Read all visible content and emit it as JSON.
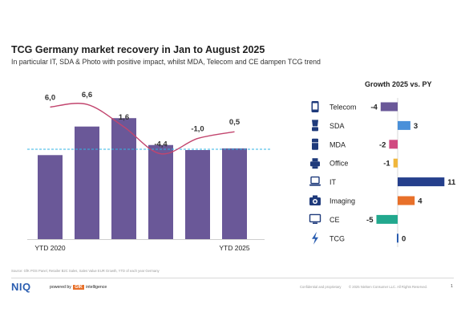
{
  "slide": {
    "title": "TCG Germany market recovery in Jan to August 2025",
    "subtitle": "In particular IT, SDA & Photo with positive impact, whilst MDA, Telecom and CE dampen TCG trend"
  },
  "chart_data": [
    {
      "type": "bar",
      "categories": [
        "YTD 2020",
        "",
        "",
        "",
        "",
        "YTD 2025"
      ],
      "bar_values": [
        100,
        117,
        122,
        106,
        103,
        104
      ],
      "line_values": [
        6.0,
        6.6,
        1.6,
        -4.4,
        -1.0,
        0.5
      ],
      "data_labels": [
        "6,0",
        "6,6",
        "1,6",
        "-4,4",
        "-1,0",
        "0,5"
      ],
      "reference_line": 103.5,
      "ylim": [
        50,
        135
      ],
      "colors": {
        "bar": "#6a5898",
        "line": "#c2456e",
        "reference": "#33b5e5"
      }
    },
    {
      "type": "bar",
      "orientation": "horizontal",
      "title": "Growth 2025 vs. PY",
      "categories": [
        "Telecom",
        "SDA",
        "MDA",
        "Office",
        "IT",
        "Imaging",
        "CE",
        "TCG"
      ],
      "values": [
        -4,
        3,
        -2,
        -1,
        11,
        4,
        -5,
        0
      ],
      "labels": [
        "-4",
        "3",
        "-2",
        "-1",
        "11",
        "4",
        "-5",
        "0"
      ],
      "icons": [
        "phone-icon",
        "mixer-icon",
        "fridge-icon",
        "printer-icon",
        "laptop-icon",
        "camera-icon",
        "tv-icon",
        "lightning-icon"
      ],
      "colors": [
        "#6a5898",
        "#4a90d9",
        "#d04a80",
        "#f0b63c",
        "#253f8c",
        "#e8702a",
        "#22a88e",
        "#2a5db0"
      ],
      "xlim": [
        -6,
        12
      ]
    }
  ],
  "footer": {
    "source": "Source: GfK POS Panel, Retailer B2C Sales, Sales Value EUR Growth, YTD of each year Germany",
    "logo": "NIQ",
    "powered_prefix": "powered by",
    "powered_brand": "GfK",
    "powered_suffix": "intelligence",
    "confidential": "Confidential and proprietary",
    "copyright": "© 2025 Nielsen Consumer LLC. All Rights Reserved.",
    "page_number": "1"
  }
}
